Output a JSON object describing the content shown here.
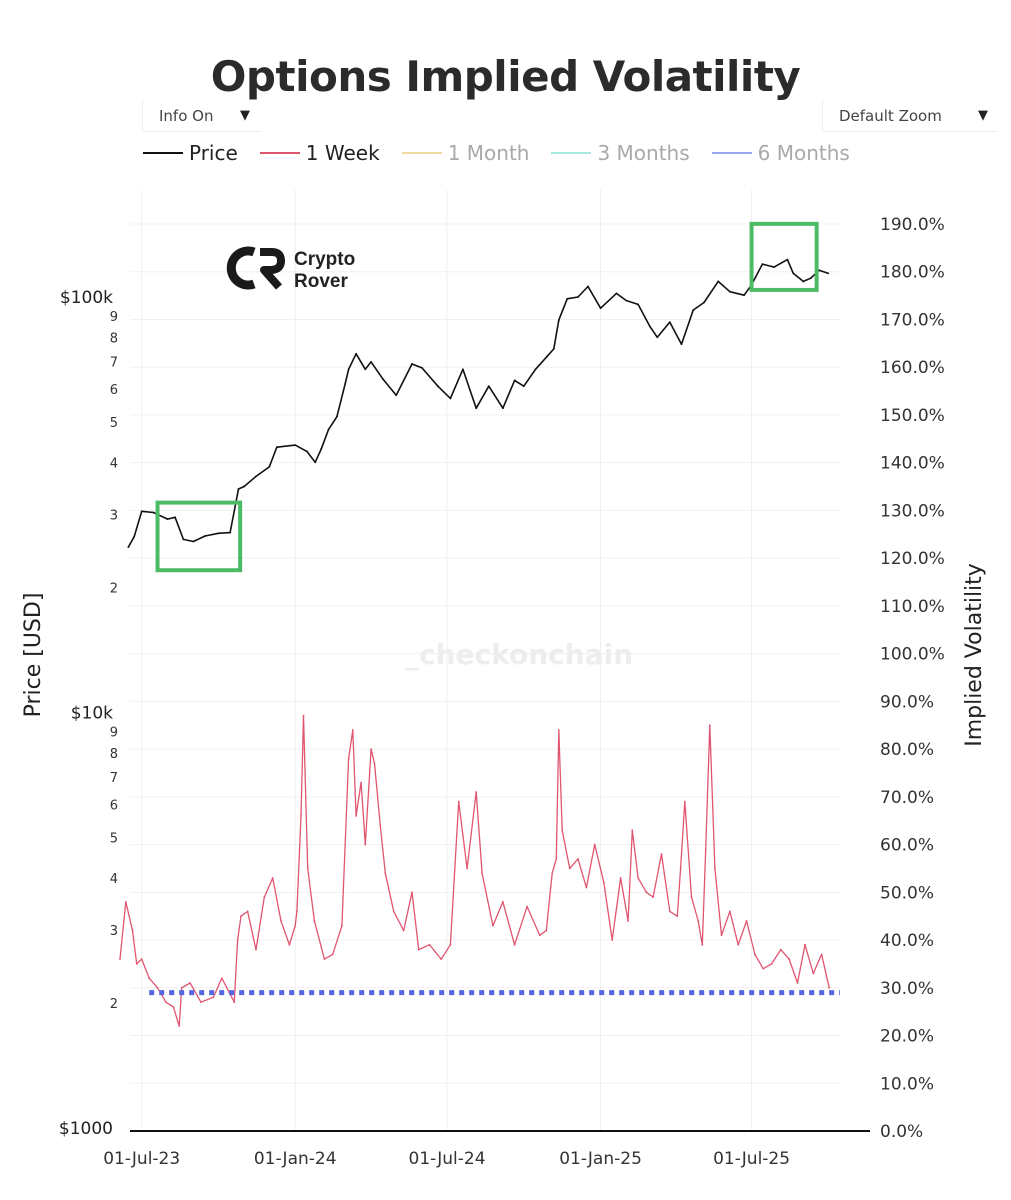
{
  "title": "Options Implied Volatility",
  "controls": {
    "info": {
      "label": "Info On",
      "arrow": "▼"
    },
    "zoom": {
      "label": "Default Zoom",
      "arrow": "▼"
    }
  },
  "legend": [
    {
      "label": "Price",
      "color": "#111111",
      "active": true
    },
    {
      "label": "1 Week",
      "color": "#e0556f",
      "active": true
    },
    {
      "label": "1 Month",
      "color": "#f0d9a3",
      "active": false
    },
    {
      "label": "3 Months",
      "color": "#a9e6dc",
      "active": false
    },
    {
      "label": "6 Months",
      "color": "#98a8ee",
      "active": false
    }
  ],
  "watermark": "_checkonchain",
  "branding": {
    "logo_icon": "crypto-rover-logo-icon",
    "line1": "Crypto",
    "line2": "Rover"
  },
  "colors": {
    "price": "#111111",
    "iv_1w": "#e0556f",
    "threshold": "#5566e0",
    "highlight_box": "#4cbb66",
    "grid": "#f0f0f0"
  },
  "chart_data": {
    "type": "line",
    "title": "Options Implied Volatility",
    "x_axis": {
      "type": "date",
      "range": [
        "2023-06-05",
        "2025-10-15"
      ],
      "ticks": [
        "2023-07-01",
        "2024-01-01",
        "2024-07-01",
        "2025-01-01",
        "2025-07-01"
      ],
      "tick_labels": [
        "01-Jul-23",
        "01-Jan-24",
        "01-Jul-24",
        "01-Jan-25",
        "01-Jul-25"
      ]
    },
    "y_left": {
      "label": "Price [USD]",
      "scale": "log",
      "range": [
        1000,
        110000
      ],
      "major_ticks": [
        1000,
        10000,
        100000
      ],
      "major_labels": [
        "$1000",
        "$10k",
        "$100k"
      ],
      "minor_ticks": [
        2000,
        3000,
        4000,
        5000,
        6000,
        7000,
        8000,
        9000,
        20000,
        30000,
        40000,
        50000,
        60000,
        70000,
        80000,
        90000
      ],
      "minor_labels": [
        "2",
        "3",
        "4",
        "5",
        "6",
        "7",
        "8",
        "9",
        "2",
        "3",
        "4",
        "5",
        "6",
        "7",
        "8",
        "9"
      ]
    },
    "y_right": {
      "label": "Implied Volatility",
      "range": [
        0,
        190
      ],
      "ticks": [
        0,
        10,
        20,
        30,
        40,
        50,
        60,
        70,
        80,
        90,
        100,
        110,
        120,
        130,
        140,
        150,
        160,
        170,
        180,
        190
      ],
      "tick_labels": [
        "0.0%",
        "10.0%",
        "20.0%",
        "30.0%",
        "40.0%",
        "50.0%",
        "60.0%",
        "70.0%",
        "80.0%",
        "90.0%",
        "100.0%",
        "110.0%",
        "120.0%",
        "130.0%",
        "140.0%",
        "150.0%",
        "160.0%",
        "170.0%",
        "180.0%",
        "190.0%"
      ]
    },
    "grid": true,
    "legend_position": "top",
    "series": [
      {
        "name": "Price",
        "axis": "left",
        "color": "#111111",
        "x": [
          "2023-06-15",
          "2023-06-22",
          "2023-07-01",
          "2023-07-15",
          "2023-08-01",
          "2023-08-10",
          "2023-08-20",
          "2023-09-01",
          "2023-09-15",
          "2023-10-01",
          "2023-10-15",
          "2023-10-25",
          "2023-11-01",
          "2023-11-15",
          "2023-12-01",
          "2023-12-10",
          "2024-01-01",
          "2024-01-15",
          "2024-01-25",
          "2024-02-01",
          "2024-02-10",
          "2024-02-20",
          "2024-03-01",
          "2024-03-05",
          "2024-03-14",
          "2024-03-25",
          "2024-04-01",
          "2024-04-15",
          "2024-05-01",
          "2024-05-20",
          "2024-06-01",
          "2024-06-20",
          "2024-07-05",
          "2024-07-20",
          "2024-08-05",
          "2024-08-20",
          "2024-09-06",
          "2024-09-20",
          "2024-10-01",
          "2024-10-15",
          "2024-10-29",
          "2024-11-06",
          "2024-11-12",
          "2024-11-22",
          "2024-12-05",
          "2024-12-17",
          "2025-01-01",
          "2025-01-20",
          "2025-02-01",
          "2025-02-15",
          "2025-03-01",
          "2025-03-10",
          "2025-03-25",
          "2025-04-08",
          "2025-04-22",
          "2025-05-05",
          "2025-05-22",
          "2025-06-05",
          "2025-06-22",
          "2025-07-01",
          "2025-07-14",
          "2025-07-28",
          "2025-08-13",
          "2025-08-20",
          "2025-09-01",
          "2025-09-10",
          "2025-09-20",
          "2025-10-01"
        ],
        "y": [
          25000,
          26500,
          30500,
          30300,
          29200,
          29500,
          26100,
          25800,
          26600,
          27000,
          27100,
          34500,
          35000,
          37000,
          39000,
          43500,
          44000,
          42500,
          40000,
          43000,
          48000,
          51500,
          62000,
          67000,
          73000,
          67000,
          69800,
          63500,
          58000,
          69000,
          67500,
          61000,
          57000,
          67000,
          54000,
          61000,
          54000,
          63000,
          61000,
          67000,
          72000,
          75000,
          88000,
          99000,
          100000,
          106000,
          94000,
          102000,
          98000,
          96000,
          85000,
          80000,
          87000,
          77000,
          93000,
          97000,
          109000,
          103000,
          101000,
          107000,
          120000,
          118000,
          123000,
          114000,
          109000,
          111000,
          116000,
          114000
        ]
      },
      {
        "name": "1 Week",
        "axis": "right",
        "color": "#e0556f",
        "x": [
          "2023-06-05",
          "2023-06-12",
          "2023-06-20",
          "2023-06-25",
          "2023-07-01",
          "2023-07-10",
          "2023-07-20",
          "2023-07-30",
          "2023-08-08",
          "2023-08-15",
          "2023-08-18",
          "2023-08-28",
          "2023-09-10",
          "2023-09-25",
          "2023-10-05",
          "2023-10-14",
          "2023-10-20",
          "2023-10-24",
          "2023-10-28",
          "2023-11-05",
          "2023-11-15",
          "2023-11-25",
          "2023-12-05",
          "2023-12-15",
          "2023-12-25",
          "2024-01-01",
          "2024-01-03",
          "2024-01-08",
          "2024-01-11",
          "2024-01-16",
          "2024-01-24",
          "2024-02-05",
          "2024-02-15",
          "2024-02-26",
          "2024-03-05",
          "2024-03-10",
          "2024-03-14",
          "2024-03-20",
          "2024-03-25",
          "2024-04-01",
          "2024-04-05",
          "2024-04-12",
          "2024-04-18",
          "2024-04-28",
          "2024-05-10",
          "2024-05-20",
          "2024-05-28",
          "2024-06-10",
          "2024-06-24",
          "2024-07-05",
          "2024-07-15",
          "2024-07-25",
          "2024-08-05",
          "2024-08-12",
          "2024-08-25",
          "2024-09-06",
          "2024-09-20",
          "2024-10-05",
          "2024-10-20",
          "2024-10-28",
          "2024-11-04",
          "2024-11-09",
          "2024-11-12",
          "2024-11-16",
          "2024-11-25",
          "2024-12-05",
          "2024-12-15",
          "2024-12-25",
          "2025-01-05",
          "2025-01-15",
          "2025-01-25",
          "2025-02-03",
          "2025-02-08",
          "2025-02-15",
          "2025-02-25",
          "2025-03-05",
          "2025-03-15",
          "2025-03-25",
          "2025-04-03",
          "2025-04-07",
          "2025-04-12",
          "2025-04-20",
          "2025-04-28",
          "2025-05-03",
          "2025-05-07",
          "2025-05-12",
          "2025-05-18",
          "2025-05-26",
          "2025-06-05",
          "2025-06-15",
          "2025-06-25",
          "2025-07-05",
          "2025-07-15",
          "2025-07-25",
          "2025-08-05",
          "2025-08-15",
          "2025-08-25",
          "2025-09-03",
          "2025-09-13",
          "2025-09-23",
          "2025-10-02"
        ],
        "y": [
          36,
          48,
          42,
          35,
          36,
          32,
          30,
          27,
          26,
          22,
          30,
          31,
          27,
          28,
          32,
          29,
          27,
          40,
          45,
          46,
          38,
          49,
          53,
          44,
          39,
          43,
          46,
          66,
          87,
          55,
          44,
          36,
          37,
          43,
          78,
          84,
          66,
          73,
          60,
          80,
          77,
          64,
          54,
          46,
          42,
          50,
          38,
          39,
          36,
          39,
          69,
          55,
          71,
          54,
          43,
          48,
          39,
          47,
          41,
          42,
          54,
          57,
          84,
          63,
          55,
          57,
          51,
          60,
          52,
          40,
          53,
          44,
          63,
          53,
          50,
          49,
          58,
          46,
          45,
          55,
          69,
          49,
          44,
          39,
          59,
          85,
          55,
          41,
          46,
          39,
          44,
          37,
          34,
          35,
          38,
          36,
          31,
          39,
          33,
          37,
          30
        ]
      }
    ],
    "reference_lines": [
      {
        "axis": "right",
        "y": 29,
        "x_from": "2023-07-10",
        "x_to": "2025-10-15",
        "style": "dotted",
        "color": "#5566e0"
      }
    ],
    "highlight_boxes": [
      {
        "axis": "left",
        "x_from": "2023-07-20",
        "x_to": "2023-10-27",
        "y_from": 22000,
        "y_to": 32000,
        "color": "#4cbb66"
      },
      {
        "axis": "left",
        "x_from": "2025-07-01",
        "x_to": "2025-09-17",
        "y_from": 104000,
        "y_to": 150000,
        "color": "#4cbb66"
      }
    ]
  }
}
